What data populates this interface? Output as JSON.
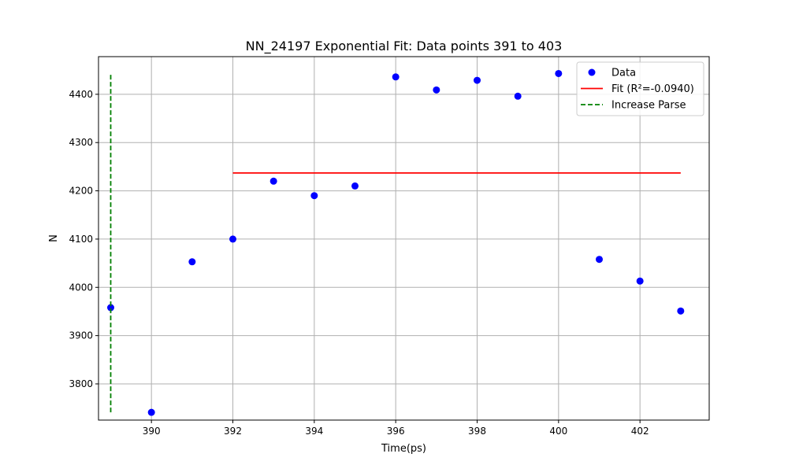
{
  "chart_data": {
    "type": "scatter",
    "title": "NN_24197 Exponential Fit: Data points 391 to 403",
    "xlabel": "Time(ps)",
    "ylabel": "N",
    "xlim": [
      388.7,
      403.7
    ],
    "ylim": [
      3725,
      4478
    ],
    "xticks": [
      390,
      392,
      394,
      396,
      398,
      400,
      402
    ],
    "yticks": [
      3800,
      3900,
      4000,
      4100,
      4200,
      4300,
      4400
    ],
    "grid": true,
    "legend_position": "top-right",
    "colors": {
      "data": "#0000ff",
      "fit": "#ff0000",
      "parse": "#008000"
    },
    "series": [
      {
        "name": "Data",
        "kind": "scatter",
        "x": [
          389,
          390,
          391,
          392,
          393,
          394,
          395,
          396,
          397,
          398,
          399,
          400,
          401,
          402,
          403
        ],
        "y": [
          3958,
          3741,
          4053,
          4100,
          4220,
          4190,
          4210,
          4436,
          4409,
          4429,
          4396,
          4443,
          4058,
          4013,
          3951
        ]
      },
      {
        "name": "Fit (R²=-0.0940)",
        "kind": "line",
        "x": [
          392,
          403
        ],
        "y": [
          4237,
          4237
        ]
      },
      {
        "name": "Increase Parse",
        "kind": "dashed-vline",
        "x": [
          389,
          389
        ],
        "y": [
          3741,
          4443
        ]
      }
    ]
  }
}
